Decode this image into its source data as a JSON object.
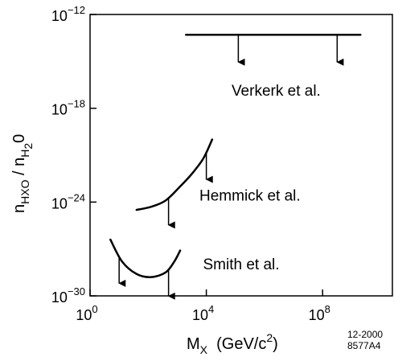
{
  "chart_data": {
    "type": "line",
    "title": "",
    "xlabel": {
      "base": "M",
      "sub": "X",
      "rest": "  (GeV/c",
      "sup": "2",
      "tail": ")"
    },
    "ylabel": {
      "n1": "n",
      "sub1": "HXO",
      "sep": " / ",
      "n2": "n",
      "sub2": "H",
      "sub2b": "2",
      "tail": "0"
    },
    "x_scale": "log",
    "y_scale": "log",
    "xlim_log10": [
      0,
      10.4
    ],
    "ylim_log10": [
      -30,
      -12
    ],
    "x_ticks": [
      {
        "log": 0,
        "base": "10",
        "exp": "0"
      },
      {
        "log": 4,
        "base": "10",
        "exp": "4"
      },
      {
        "log": 8,
        "base": "10",
        "exp": "8"
      }
    ],
    "y_ticks": [
      {
        "log": -12,
        "base": "10",
        "exp": "−12"
      },
      {
        "log": -18,
        "base": "10",
        "exp": "−18"
      },
      {
        "log": -24,
        "base": "10",
        "exp": "−24"
      },
      {
        "log": -30,
        "base": "10",
        "exp": "−30"
      }
    ],
    "grid": false,
    "series": [
      {
        "name": "Verkerk et al.",
        "kind": "upper-limit",
        "x_log10": [
          3.3,
          9.3
        ],
        "y_log10": [
          -13.3,
          -13.3
        ],
        "arrows_x_log10": [
          5.1,
          8.5
        ],
        "label_pos": {
          "x_log10": 6.4,
          "y_log10": -17.2
        }
      },
      {
        "name": "Hemmick et al.",
        "kind": "upper-limit",
        "x_log10": [
          1.6,
          2.1,
          2.6,
          3.1,
          3.5,
          3.9,
          4.2
        ],
        "y_log10": [
          -24.5,
          -24.3,
          -23.9,
          -23.0,
          -22.2,
          -21.2,
          -20.0
        ],
        "arrows_x_log10": [
          2.7,
          4.0
        ],
        "label_pos": {
          "x_log10": 5.5,
          "y_log10": -23.9
        }
      },
      {
        "name": "Smith et al.",
        "kind": "upper-limit",
        "x_log10": [
          0.7,
          1.1,
          1.6,
          2.1,
          2.6,
          2.9,
          3.1
        ],
        "y_log10": [
          -26.4,
          -27.8,
          -28.6,
          -28.8,
          -28.5,
          -27.8,
          -27.1
        ],
        "arrows_x_log10": [
          1.0,
          2.7
        ],
        "label_pos": {
          "x_log10": 5.2,
          "y_log10": -28.3
        }
      }
    ]
  },
  "figure_code": {
    "line1": "12-2000",
    "line2": "8577A4"
  }
}
